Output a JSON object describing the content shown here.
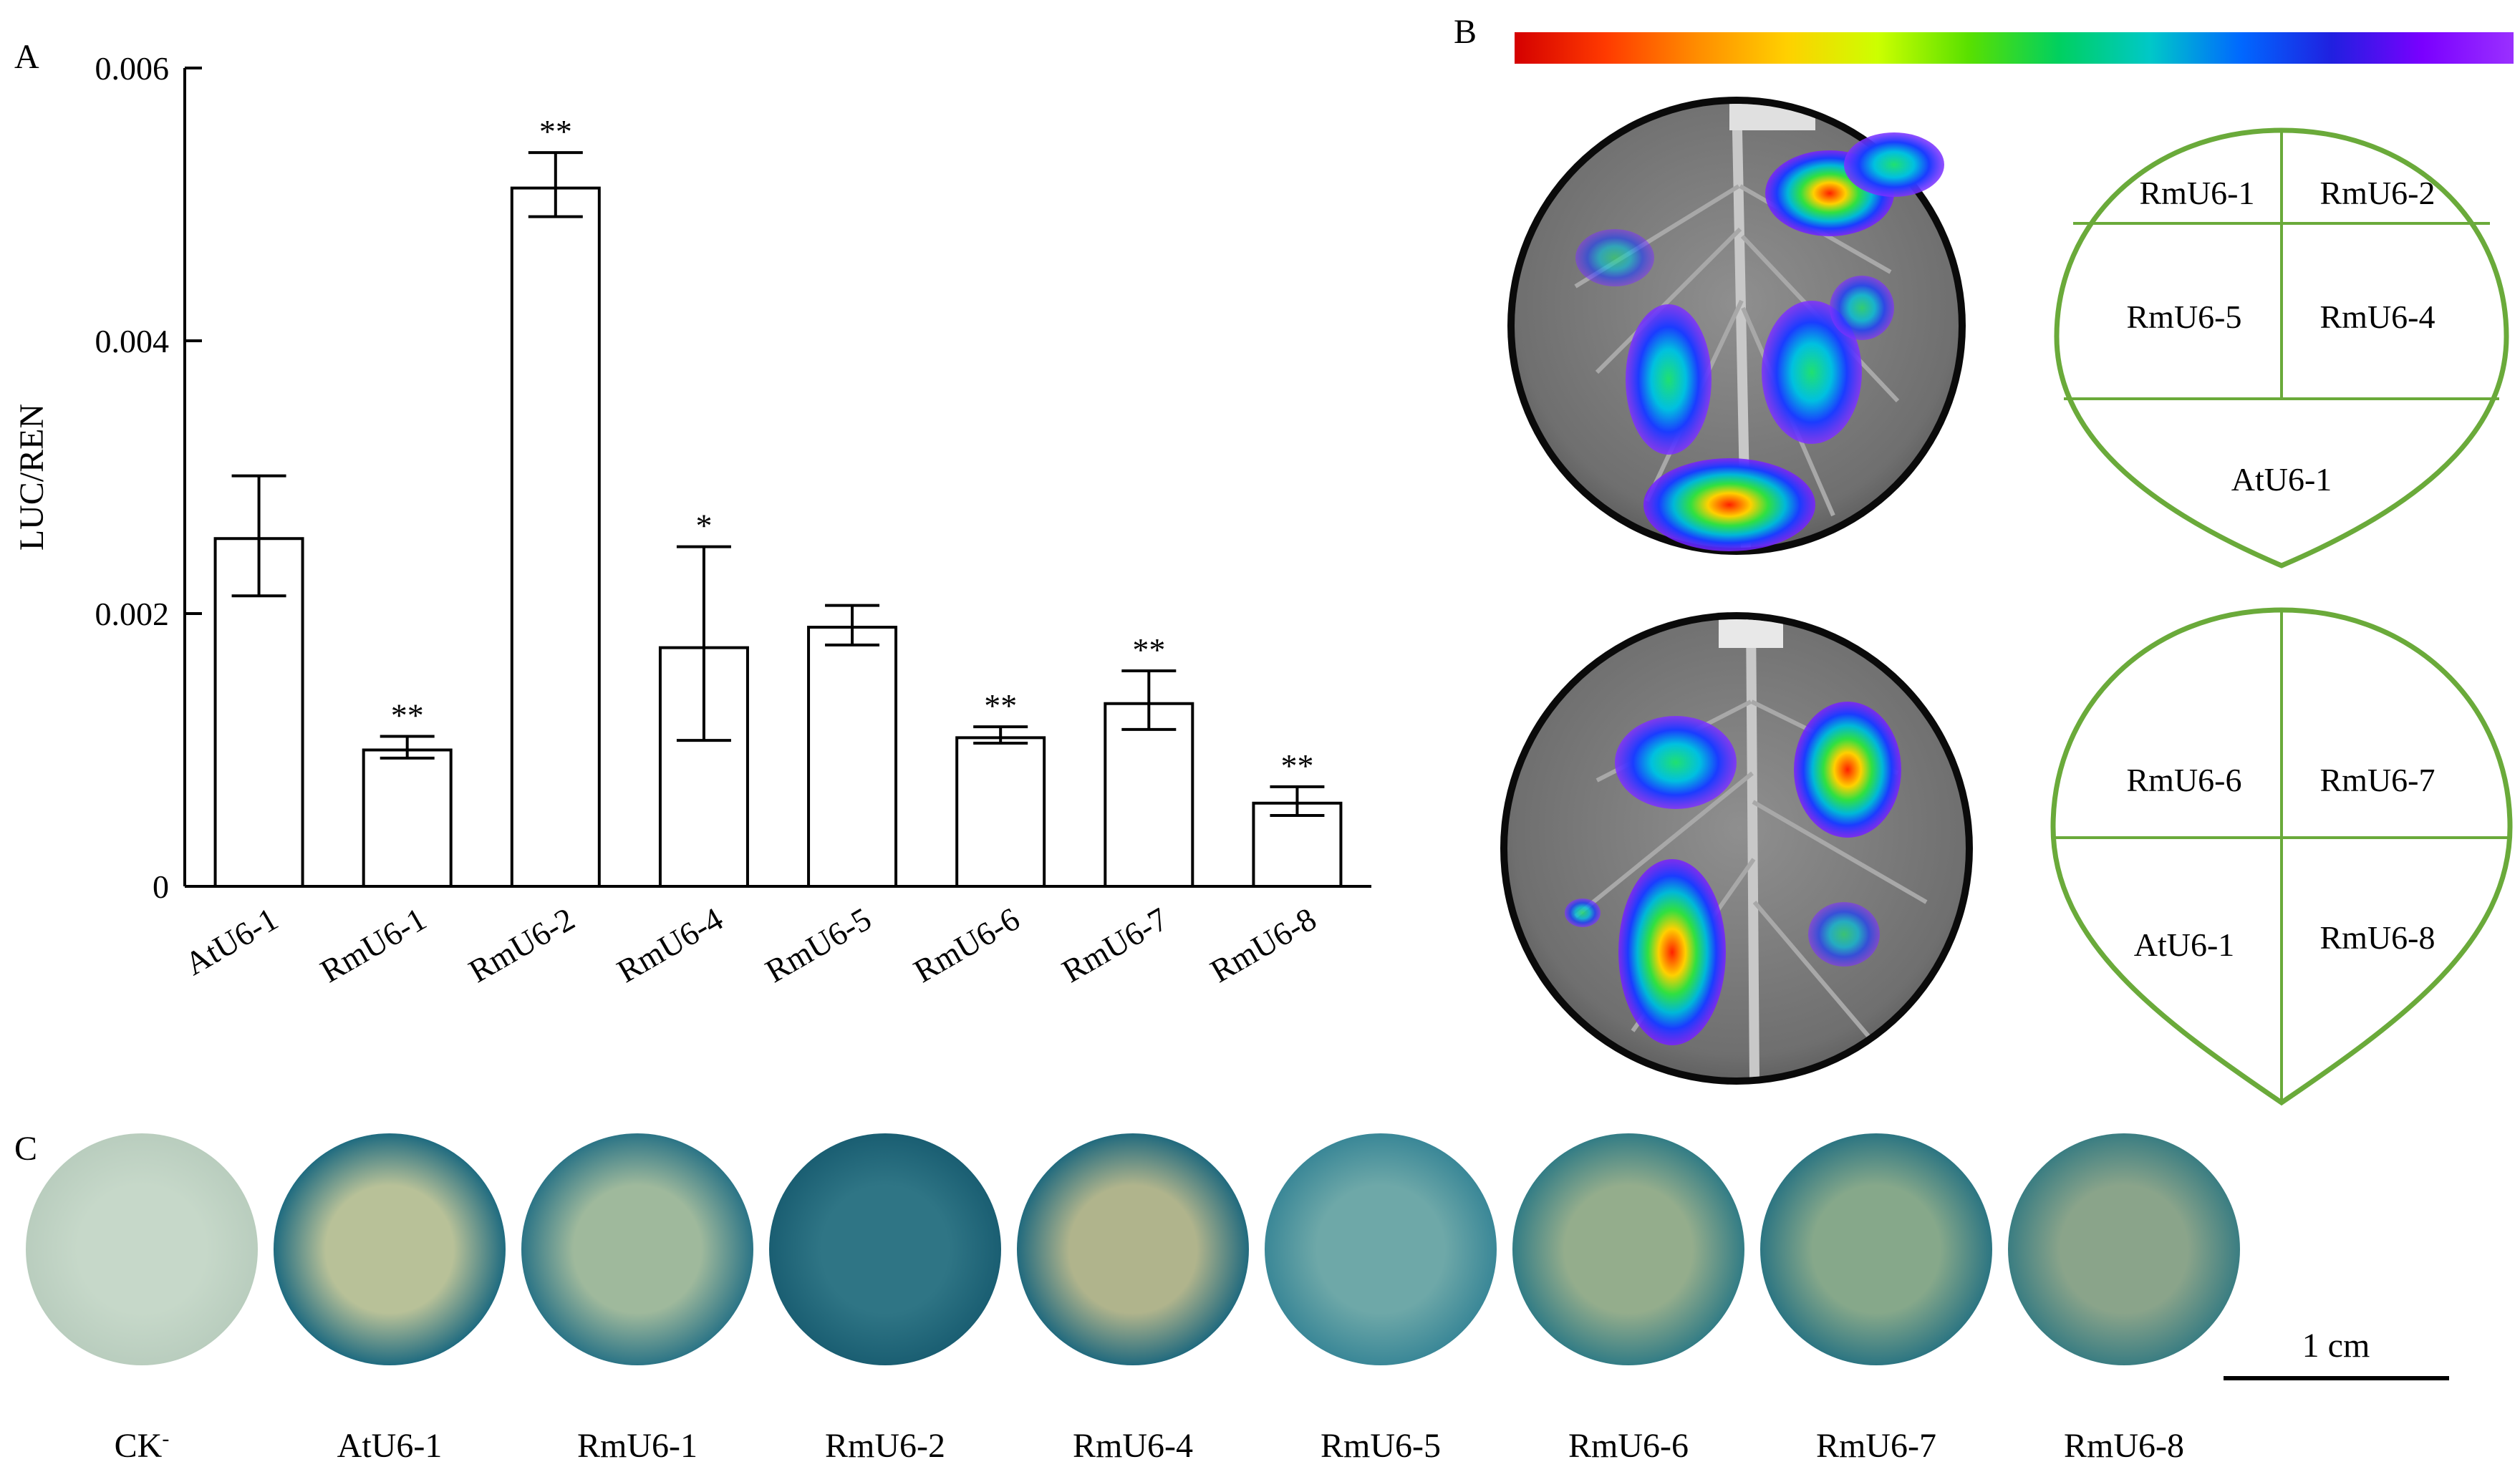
{
  "panels": {
    "a": {
      "letter": "A"
    },
    "b": {
      "letter": "B"
    },
    "c": {
      "letter": "C"
    }
  },
  "chart_data": {
    "type": "bar",
    "ylabel": "LUC/REN",
    "xlabel": "",
    "ylim": [
      0,
      0.006
    ],
    "yticks": [
      0,
      0.002,
      0.004,
      0.006
    ],
    "ytick_labels": [
      "0",
      "0.002",
      "0.004",
      "0.006"
    ],
    "categories": [
      "AtU6-1",
      "RmU6-1",
      "RmU6-2",
      "RmU6-4",
      "RmU6-5",
      "RmU6-6",
      "RmU6-7",
      "RmU6-8"
    ],
    "values": [
      0.00255,
      0.001,
      0.00512,
      0.00175,
      0.0019,
      0.00109,
      0.00134,
      0.00061
    ],
    "error_low": [
      0.00213,
      0.00094,
      0.00491,
      0.00107,
      0.00177,
      0.00105,
      0.00115,
      0.00052
    ],
    "error_high": [
      0.00301,
      0.0011,
      0.00538,
      0.00249,
      0.00206,
      0.00117,
      0.00158,
      0.00073
    ],
    "significance": [
      "",
      "**",
      "**",
      "*",
      "",
      "**",
      "**",
      "**"
    ]
  },
  "panel_b": {
    "colorbar": [
      "#d40000",
      "#ff3a00",
      "#ff8c00",
      "#ffd000",
      "#ccff00",
      "#59e000",
      "#00d060",
      "#00c8c8",
      "#0068ff",
      "#2020e0",
      "#7a00ff",
      "#9a30ff"
    ],
    "diagram_top": {
      "labels": [
        "RmU6-1",
        "RmU6-2",
        "RmU6-5",
        "RmU6-4",
        "AtU6-1"
      ]
    },
    "diagram_bottom": {
      "labels": [
        "RmU6-6",
        "RmU6-7",
        "AtU6-1",
        "RmU6-8"
      ]
    },
    "outline_color": "#6aaa3a"
  },
  "panel_c": {
    "discs": [
      {
        "label": "CK",
        "sup": "-"
      },
      {
        "label": "AtU6-1",
        "sup": ""
      },
      {
        "label": "RmU6-1",
        "sup": ""
      },
      {
        "label": "RmU6-2",
        "sup": ""
      },
      {
        "label": "RmU6-4",
        "sup": ""
      },
      {
        "label": "RmU6-5",
        "sup": ""
      },
      {
        "label": "RmU6-6",
        "sup": ""
      },
      {
        "label": "RmU6-7",
        "sup": ""
      },
      {
        "label": "RmU6-8",
        "sup": ""
      }
    ],
    "disc_colors": [
      {
        "edge": "#b9cdbe",
        "center": "#c6d8c9"
      },
      {
        "edge": "#1f6b80",
        "center": "#b8c198"
      },
      {
        "edge": "#2b7486",
        "center": "#9fb99c"
      },
      {
        "edge": "#1a5e72",
        "center": "#2f7585"
      },
      {
        "edge": "#216a7e",
        "center": "#b0b48c"
      },
      {
        "edge": "#3a8797",
        "center": "#6ea8a8"
      },
      {
        "edge": "#327c85",
        "center": "#94ad8c"
      },
      {
        "edge": "#2c7582",
        "center": "#86a88a"
      },
      {
        "edge": "#3a7d82",
        "center": "#8aa48a"
      }
    ],
    "scale_label": "1 cm"
  }
}
